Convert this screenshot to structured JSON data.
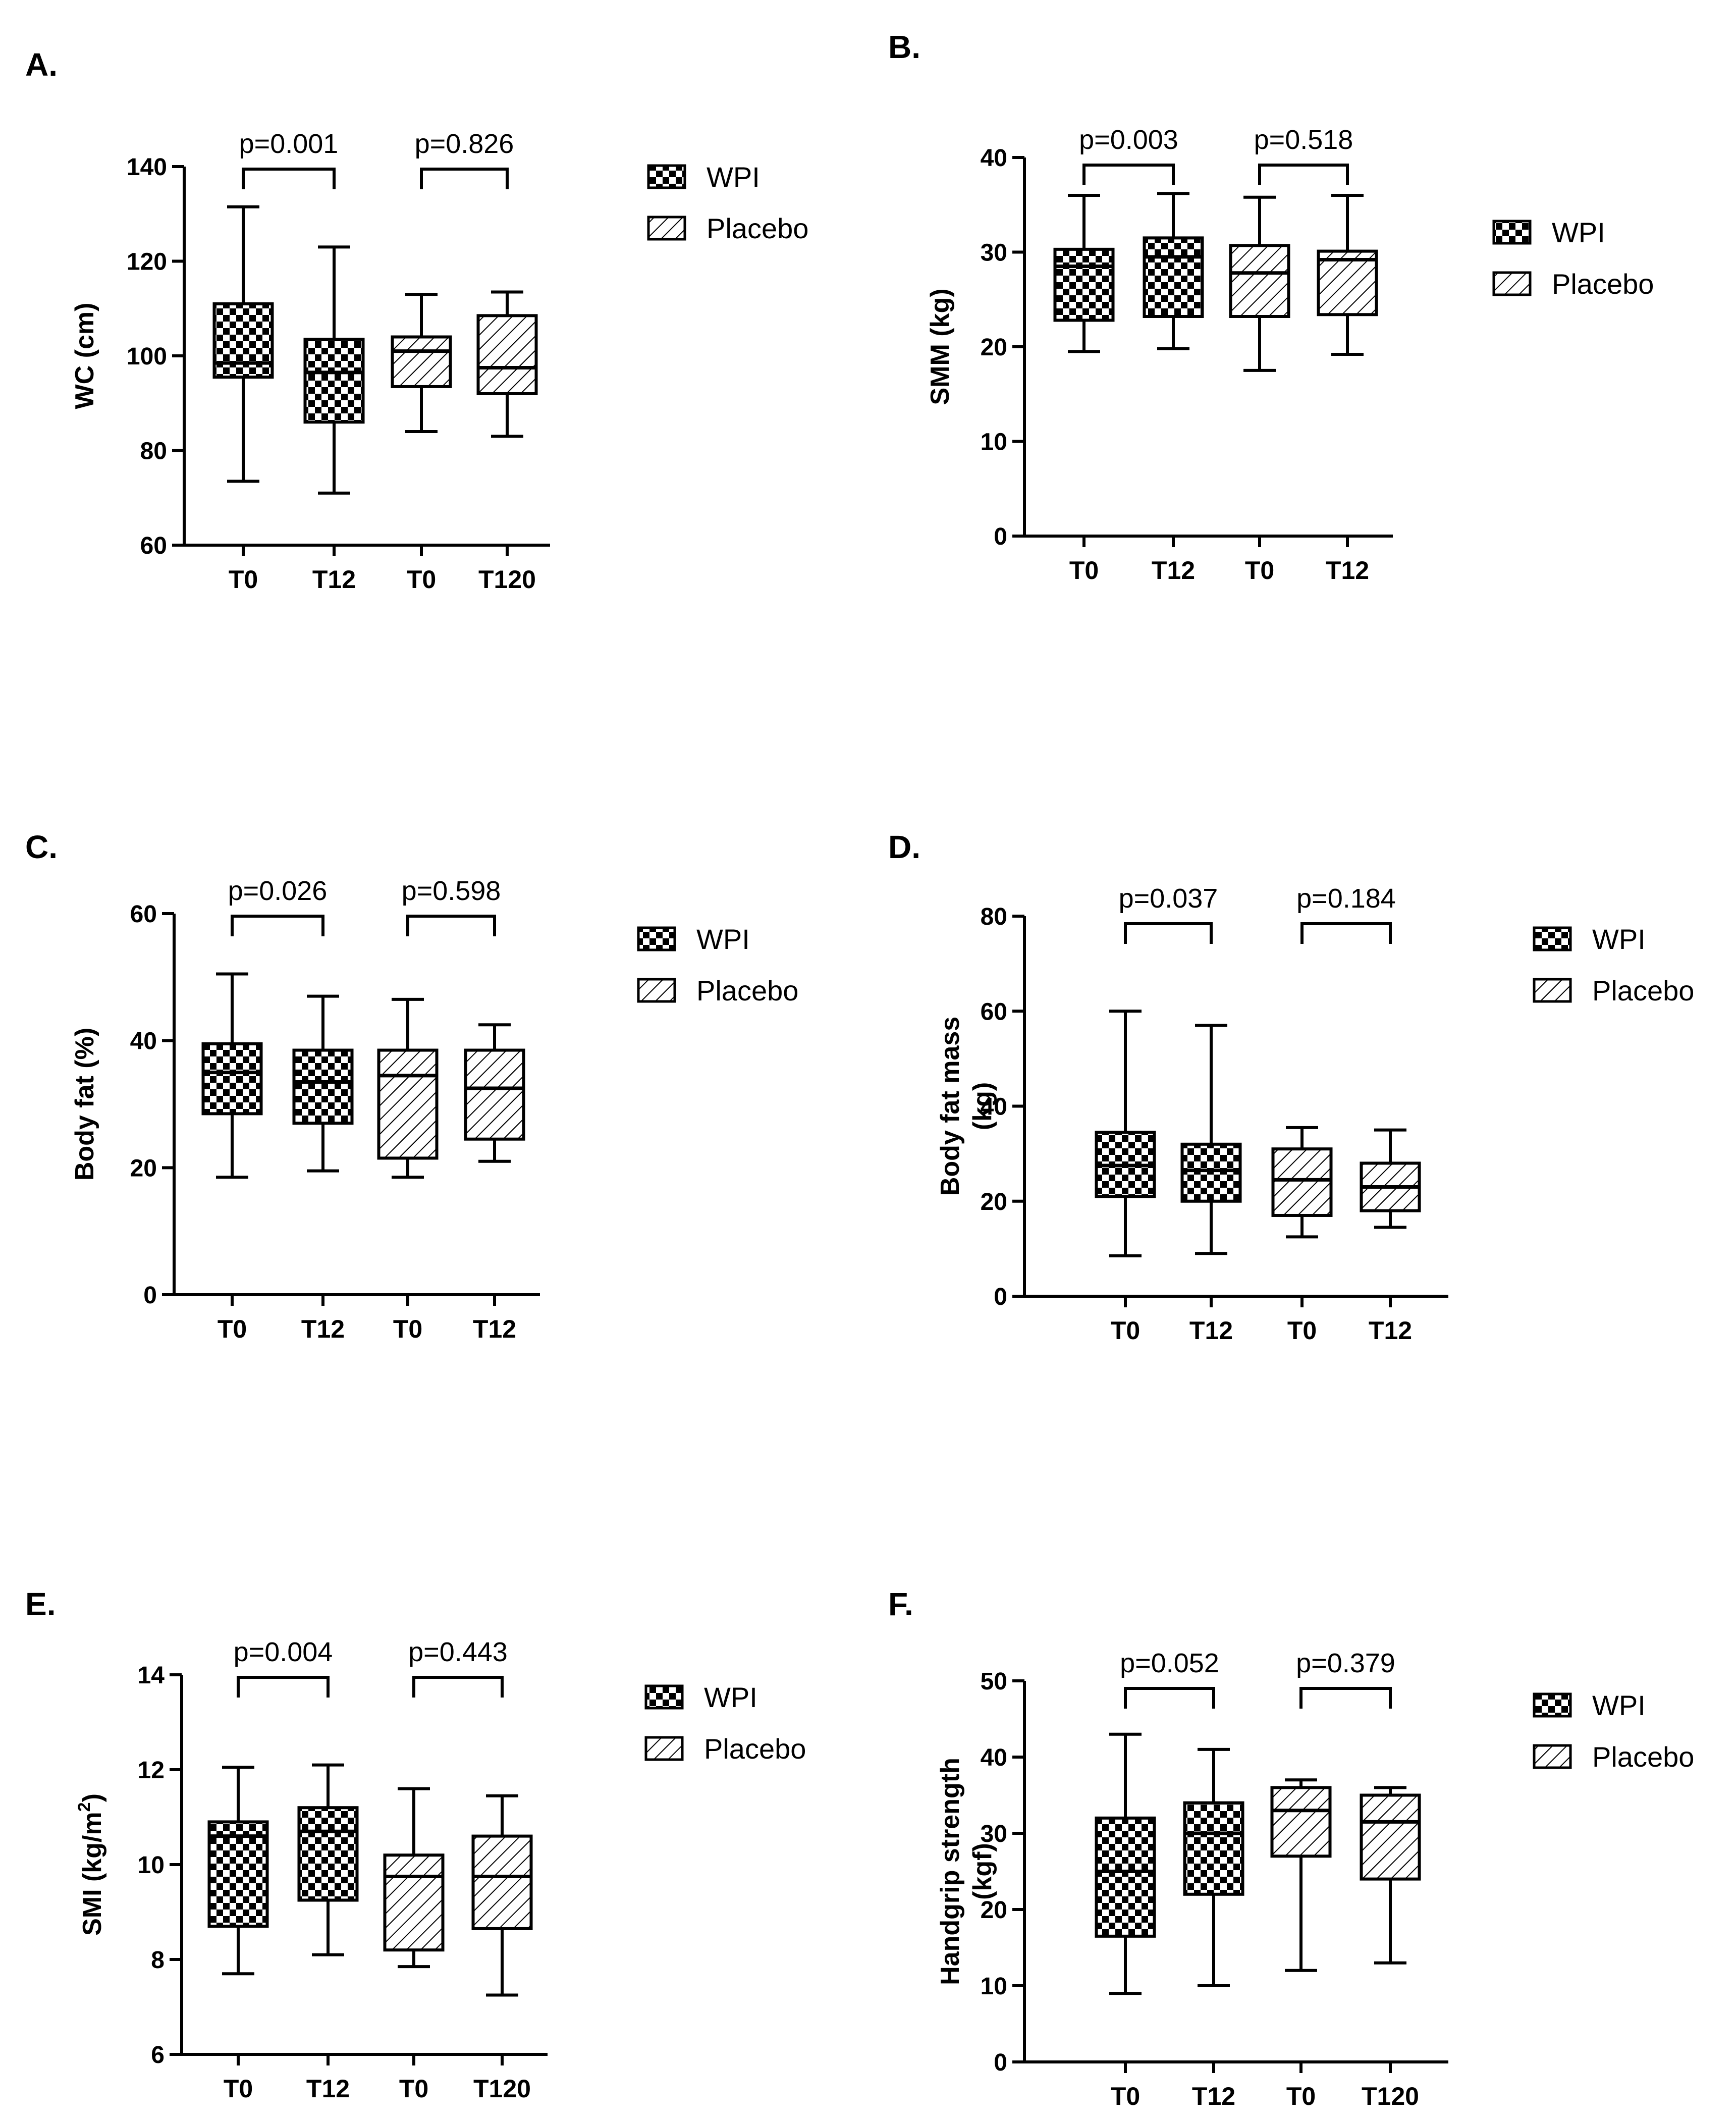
{
  "legend": [
    {
      "label": "WPI",
      "pattern": "checker"
    },
    {
      "label": "Placebo",
      "pattern": "hatch"
    }
  ],
  "chart_data": [
    {
      "panel": "A.",
      "type": "box",
      "ylabel": "WC (cm)",
      "ylim": [
        60,
        140
      ],
      "yticks": [
        "60",
        "80",
        "100",
        "120",
        "140"
      ],
      "categories": [
        "T0",
        "T12",
        "T0",
        "T120"
      ],
      "groups": [
        "WPI",
        "WPI",
        "Placebo",
        "Placebo"
      ],
      "boxes": [
        {
          "min": 73.5,
          "q1": 95.5,
          "median": 98.5,
          "q3": 111,
          "max": 131.5
        },
        {
          "min": 71,
          "q1": 86,
          "median": 96.5,
          "q3": 103.5,
          "max": 123
        },
        {
          "min": 84,
          "q1": 93.5,
          "median": 101,
          "q3": 104,
          "max": 113
        },
        {
          "min": 83,
          "q1": 92,
          "median": 97.5,
          "q3": 108.5,
          "max": 113.5
        }
      ],
      "pvalues": [
        {
          "label": "p=0.001",
          "from": 0,
          "to": 1
        },
        {
          "label": "p=0.826",
          "from": 2,
          "to": 3
        }
      ]
    },
    {
      "panel": "B.",
      "type": "box",
      "ylabel": "SMM (kg)",
      "ylim": [
        0,
        40
      ],
      "yticks": [
        "0",
        "10",
        "20",
        "30",
        "40"
      ],
      "categories": [
        "T0",
        "T12",
        "T0",
        "T12"
      ],
      "groups": [
        "WPI",
        "WPI",
        "Placebo",
        "Placebo"
      ],
      "boxes": [
        {
          "min": 19.5,
          "q1": 22.8,
          "median": 28.5,
          "q3": 30.3,
          "max": 36
        },
        {
          "min": 19.8,
          "q1": 23.2,
          "median": 29.5,
          "q3": 31.5,
          "max": 36.2
        },
        {
          "min": 17.5,
          "q1": 23.2,
          "median": 27.8,
          "q3": 30.7,
          "max": 35.8
        },
        {
          "min": 19.2,
          "q1": 23.4,
          "median": 29.2,
          "q3": 30.1,
          "max": 36
        }
      ],
      "pvalues": [
        {
          "label": "p=0.003",
          "from": 0,
          "to": 1
        },
        {
          "label": "p=0.518",
          "from": 2,
          "to": 3
        }
      ]
    },
    {
      "panel": "C.",
      "type": "box",
      "ylabel": "Body fat (%)",
      "ylim": [
        0,
        60
      ],
      "yticks": [
        "0",
        "20",
        "40",
        "60"
      ],
      "categories": [
        "T0",
        "T12",
        "T0",
        "T12"
      ],
      "groups": [
        "WPI",
        "WPI",
        "Placebo",
        "Placebo"
      ],
      "boxes": [
        {
          "min": 18.5,
          "q1": 28.5,
          "median": 35,
          "q3": 39.5,
          "max": 50.5
        },
        {
          "min": 19.5,
          "q1": 27,
          "median": 33.5,
          "q3": 38.5,
          "max": 47
        },
        {
          "min": 18.5,
          "q1": 21.5,
          "median": 34.5,
          "q3": 38.5,
          "max": 46.5
        },
        {
          "min": 21,
          "q1": 24.5,
          "median": 32.5,
          "q3": 38.5,
          "max": 42.5
        }
      ],
      "pvalues": [
        {
          "label": "p=0.026",
          "from": 0,
          "to": 1
        },
        {
          "label": "p=0.598",
          "from": 2,
          "to": 3
        }
      ]
    },
    {
      "panel": "D.",
      "type": "box",
      "ylabel": [
        "Body fat mass",
        "(kg)"
      ],
      "ylim": [
        0,
        80
      ],
      "yticks": [
        "0",
        "20",
        "40",
        "60",
        "80"
      ],
      "categories": [
        "T0",
        "T12",
        "T0",
        "T12"
      ],
      "groups": [
        "WPI",
        "WPI",
        "Placebo",
        "Placebo"
      ],
      "boxes": [
        {
          "min": 8.5,
          "q1": 21,
          "median": 27.5,
          "q3": 34.5,
          "max": 60
        },
        {
          "min": 9,
          "q1": 20,
          "median": 26.5,
          "q3": 32,
          "max": 57
        },
        {
          "min": 12.5,
          "q1": 17,
          "median": 24.5,
          "q3": 31,
          "max": 35.5
        },
        {
          "min": 14.5,
          "q1": 18,
          "median": 23,
          "q3": 28,
          "max": 35
        }
      ],
      "pvalues": [
        {
          "label": "p=0.037",
          "from": 0,
          "to": 1
        },
        {
          "label": "p=0.184",
          "from": 2,
          "to": 3
        }
      ]
    },
    {
      "panel": "E.",
      "type": "box",
      "ylabel": "SMI (kg/m2)",
      "ylim": [
        6,
        14
      ],
      "yticks": [
        "6",
        "8",
        "10",
        "12",
        "14"
      ],
      "categories": [
        "T0",
        "T12",
        "T0",
        "T120"
      ],
      "groups": [
        "WPI",
        "WPI",
        "Placebo",
        "Placebo"
      ],
      "boxes": [
        {
          "min": 7.7,
          "q1": 8.7,
          "median": 10.6,
          "q3": 10.9,
          "max": 12.05
        },
        {
          "min": 8.1,
          "q1": 9.25,
          "median": 10.7,
          "q3": 11.2,
          "max": 12.1
        },
        {
          "min": 7.85,
          "q1": 8.2,
          "median": 9.75,
          "q3": 10.2,
          "max": 11.6
        },
        {
          "min": 7.25,
          "q1": 8.65,
          "median": 9.75,
          "q3": 10.6,
          "max": 11.45
        }
      ],
      "pvalues": [
        {
          "label": "p=0.004",
          "from": 0,
          "to": 1
        },
        {
          "label": "p=0.443",
          "from": 2,
          "to": 3
        }
      ]
    },
    {
      "panel": "F.",
      "type": "box",
      "ylabel": [
        "Handgrip strength",
        "(kgf)"
      ],
      "ylim": [
        0,
        50
      ],
      "yticks": [
        "0",
        "10",
        "20",
        "30",
        "40",
        "50"
      ],
      "categories": [
        "T0",
        "T12",
        "T0",
        "T120"
      ],
      "groups": [
        "WPI",
        "WPI",
        "Placebo",
        "Placebo"
      ],
      "boxes": [
        {
          "min": 9,
          "q1": 16.5,
          "median": 25,
          "q3": 32,
          "max": 43
        },
        {
          "min": 10,
          "q1": 22,
          "median": 30,
          "q3": 34,
          "max": 41
        },
        {
          "min": 12,
          "q1": 27,
          "median": 33,
          "q3": 36,
          "max": 37
        },
        {
          "min": 13,
          "q1": 24,
          "median": 31.5,
          "q3": 35,
          "max": 36
        }
      ],
      "pvalues": [
        {
          "label": "p=0.052",
          "from": 0,
          "to": 1
        },
        {
          "label": "p=0.379",
          "from": 2,
          "to": 3
        }
      ]
    }
  ]
}
